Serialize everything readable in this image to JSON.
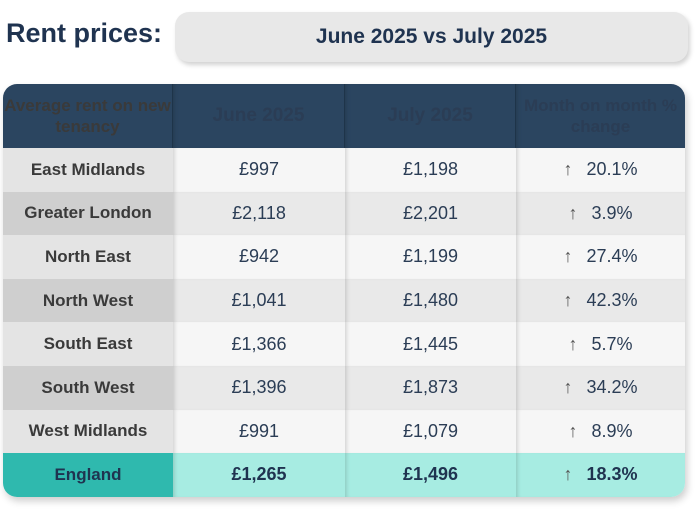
{
  "title": "Rent prices:",
  "subtitle": "June 2025 vs July 2025",
  "headers": [
    "Average rent on new tenancy",
    "June 2025",
    "July 2025",
    "Month on month % change"
  ],
  "rows": [
    {
      "region": "East Midlands",
      "june": "£997",
      "july": "£1,198",
      "change": "20.1%"
    },
    {
      "region": "Greater London",
      "june": "£2,118",
      "july": "£2,201",
      "change": "3.9%"
    },
    {
      "region": "North East",
      "june": "£942",
      "july": "£1,199",
      "change": "27.4%"
    },
    {
      "region": "North West",
      "june": "£1,041",
      "july": "£1,480",
      "change": "42.3%"
    },
    {
      "region": "South East",
      "june": "£1,366",
      "july": "£1,445",
      "change": "5.7%"
    },
    {
      "region": "South West",
      "june": "£1,396",
      "july": "£1,873",
      "change": "34.2%"
    },
    {
      "region": "West Midlands",
      "june": "£991",
      "july": "£1,079",
      "change": "8.9%"
    }
  ],
  "total": {
    "region": "England",
    "june": "£1,265",
    "july": "£1,496",
    "change": "18.3%"
  },
  "arrow_icon": "↑"
}
